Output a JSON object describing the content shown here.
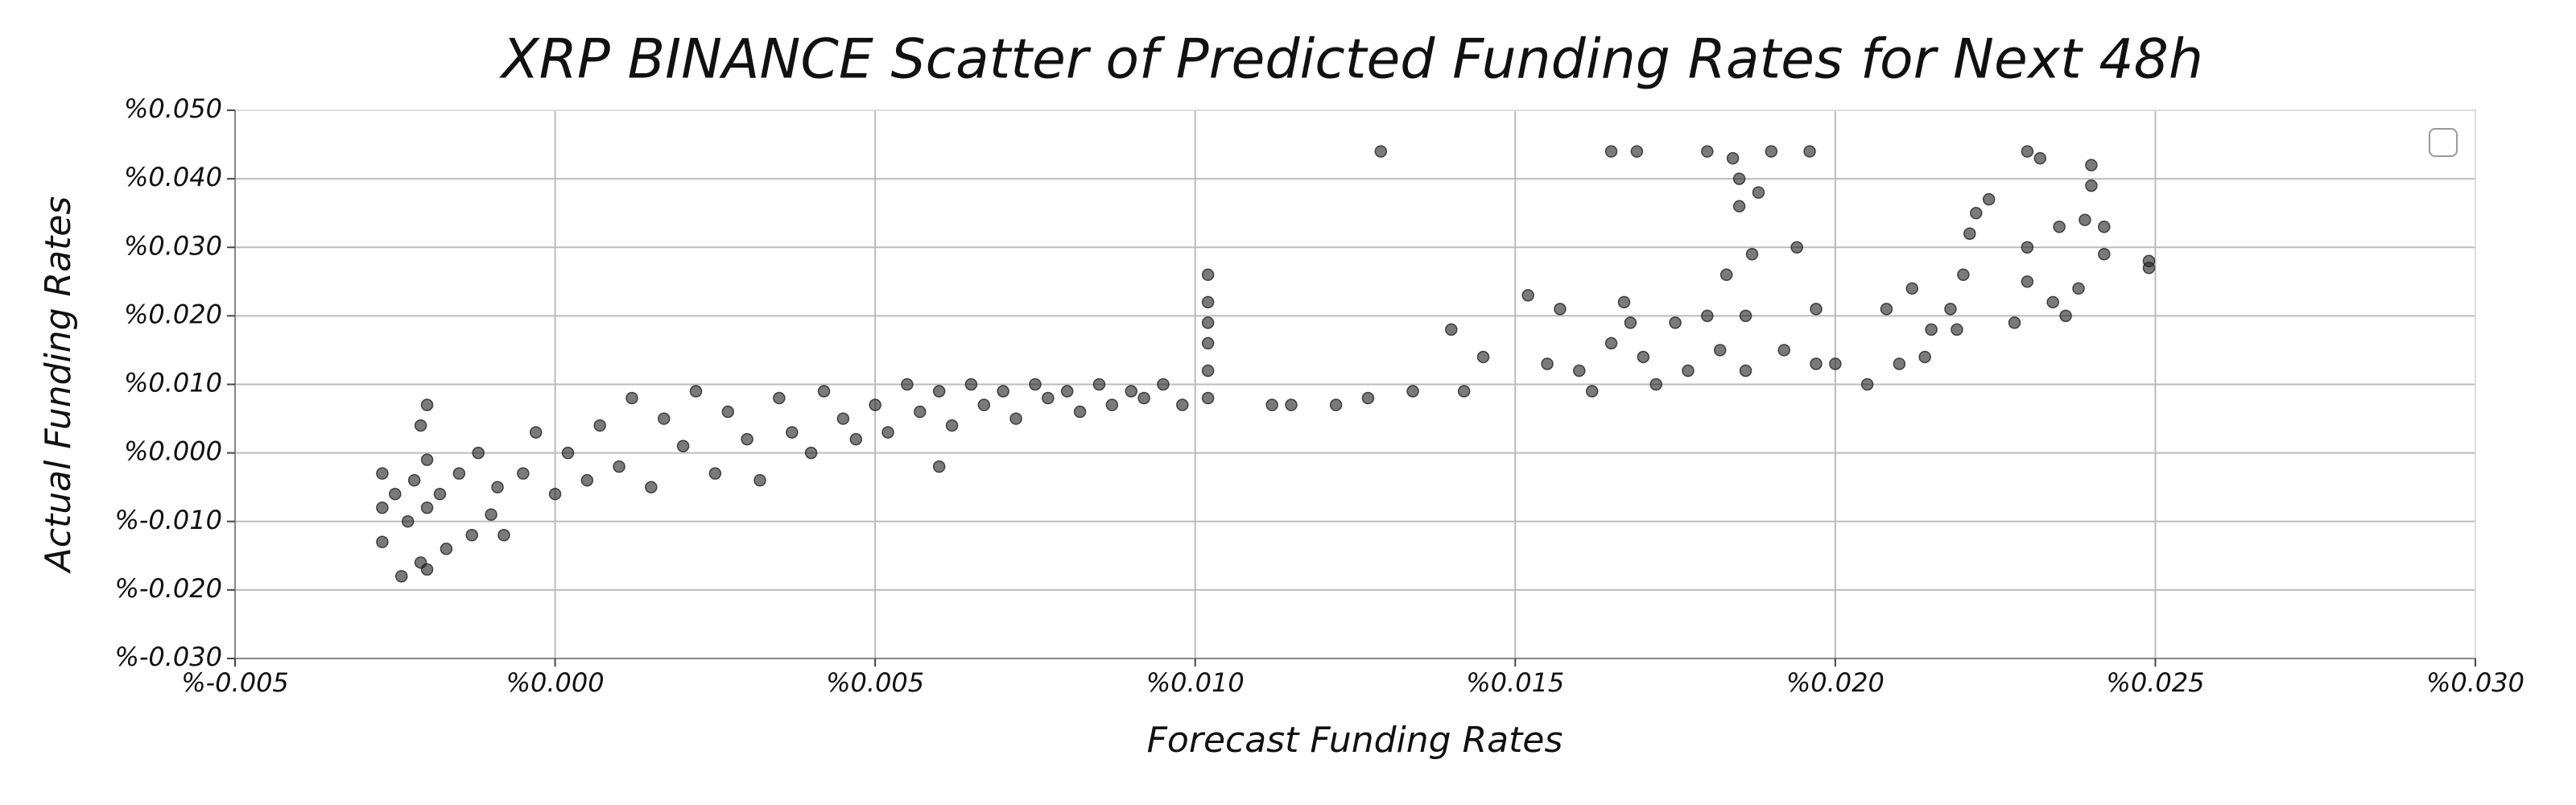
{
  "chart_data": {
    "type": "scatter",
    "title": "XRP BINANCE Scatter of Predicted Funding Rates for Next 48h",
    "x_label": "Forecast Funding Rates",
    "y_label": "Actual Funding Rates",
    "color": "#222222",
    "grid": true,
    "xlim": [
      -0.005,
      0.03
    ],
    "ylim": [
      -0.03,
      0.05
    ],
    "xticks": [
      {
        "value": -0.005,
        "label": "%-0.005"
      },
      {
        "value": 0.0,
        "label": "%0.000"
      },
      {
        "value": 0.005,
        "label": "%0.005"
      },
      {
        "value": 0.01,
        "label": "%0.010"
      },
      {
        "value": 0.015,
        "label": "%0.015"
      },
      {
        "value": 0.02,
        "label": "%0.020"
      },
      {
        "value": 0.025,
        "label": "%0.025"
      },
      {
        "value": 0.03,
        "label": "%0.030"
      }
    ],
    "yticks": [
      {
        "value": -0.03,
        "label": "%-0.030"
      },
      {
        "value": -0.02,
        "label": "%-0.020"
      },
      {
        "value": -0.01,
        "label": "%-0.010"
      },
      {
        "value": 0.0,
        "label": "%0.000"
      },
      {
        "value": 0.01,
        "label": "%0.010"
      },
      {
        "value": 0.02,
        "label": "%0.020"
      },
      {
        "value": 0.03,
        "label": "%0.030"
      },
      {
        "value": 0.04,
        "label": "%0.040"
      },
      {
        "value": 0.05,
        "label": "%0.050"
      }
    ],
    "x": [
      -0.0027,
      -0.0027,
      -0.0027,
      -0.0025,
      -0.0024,
      -0.0023,
      -0.0022,
      -0.0021,
      -0.0021,
      -0.002,
      -0.002,
      -0.002,
      -0.002,
      -0.0018,
      -0.0017,
      -0.0015,
      -0.0013,
      -0.0012,
      -0.001,
      -0.0009,
      -0.0008,
      -0.0005,
      -0.0003,
      0.0,
      0.0002,
      0.0005,
      0.0007,
      0.001,
      0.0012,
      0.0015,
      0.0017,
      0.002,
      0.0022,
      0.0025,
      0.0027,
      0.003,
      0.0032,
      0.0035,
      0.0037,
      0.004,
      0.0042,
      0.0045,
      0.0047,
      0.005,
      0.0052,
      0.0055,
      0.0057,
      0.006,
      0.006,
      0.0062,
      0.0065,
      0.0067,
      0.007,
      0.0072,
      0.0075,
      0.0077,
      0.008,
      0.0082,
      0.0085,
      0.0087,
      0.009,
      0.0092,
      0.0095,
      0.0098,
      0.0102,
      0.0102,
      0.0102,
      0.0102,
      0.0102,
      0.0102,
      0.0112,
      0.0115,
      0.0122,
      0.0127,
      0.0129,
      0.0134,
      0.014,
      0.0142,
      0.0145,
      0.0152,
      0.0155,
      0.0157,
      0.016,
      0.0162,
      0.0165,
      0.0165,
      0.0167,
      0.0168,
      0.0169,
      0.017,
      0.0172,
      0.0175,
      0.0177,
      0.018,
      0.018,
      0.0182,
      0.0183,
      0.0184,
      0.0185,
      0.0185,
      0.0186,
      0.0186,
      0.0187,
      0.0188,
      0.019,
      0.0192,
      0.0194,
      0.0196,
      0.0197,
      0.0197,
      0.02,
      0.0205,
      0.0208,
      0.021,
      0.0212,
      0.0214,
      0.0215,
      0.0218,
      0.0219,
      0.022,
      0.0221,
      0.0222,
      0.0224,
      0.0228,
      0.023,
      0.023,
      0.023,
      0.0232,
      0.0234,
      0.0235,
      0.0236,
      0.0238,
      0.0239,
      0.024,
      0.024,
      0.0242,
      0.0242,
      0.0249,
      0.0249
    ],
    "values": [
      -0.013,
      -0.008,
      -0.003,
      -0.006,
      -0.018,
      -0.01,
      -0.004,
      0.004,
      -0.016,
      0.007,
      -0.001,
      -0.008,
      -0.017,
      -0.006,
      -0.014,
      -0.003,
      -0.012,
      0.0,
      -0.009,
      -0.005,
      -0.012,
      -0.003,
      0.003,
      -0.006,
      0.0,
      -0.004,
      0.004,
      -0.002,
      0.008,
      -0.005,
      0.005,
      0.001,
      0.009,
      -0.003,
      0.006,
      0.002,
      -0.004,
      0.008,
      0.003,
      0.0,
      0.009,
      0.005,
      0.002,
      0.007,
      0.003,
      0.01,
      0.006,
      -0.002,
      0.009,
      0.004,
      0.01,
      0.007,
      0.009,
      0.005,
      0.01,
      0.008,
      0.009,
      0.006,
      0.01,
      0.007,
      0.009,
      0.008,
      0.01,
      0.007,
      0.008,
      0.012,
      0.016,
      0.019,
      0.022,
      0.026,
      0.007,
      0.007,
      0.007,
      0.008,
      0.044,
      0.009,
      0.018,
      0.009,
      0.014,
      0.023,
      0.013,
      0.021,
      0.012,
      0.009,
      0.016,
      0.044,
      0.022,
      0.019,
      0.044,
      0.014,
      0.01,
      0.019,
      0.012,
      0.02,
      0.044,
      0.015,
      0.026,
      0.043,
      0.04,
      0.036,
      0.012,
      0.02,
      0.029,
      0.038,
      0.044,
      0.015,
      0.03,
      0.044,
      0.021,
      0.013,
      0.013,
      0.01,
      0.021,
      0.013,
      0.024,
      0.014,
      0.018,
      0.021,
      0.018,
      0.026,
      0.032,
      0.035,
      0.037,
      0.019,
      0.044,
      0.03,
      0.025,
      0.043,
      0.022,
      0.033,
      0.02,
      0.024,
      0.034,
      0.039,
      0.042,
      0.033,
      0.029,
      0.027,
      0.028
    ]
  }
}
